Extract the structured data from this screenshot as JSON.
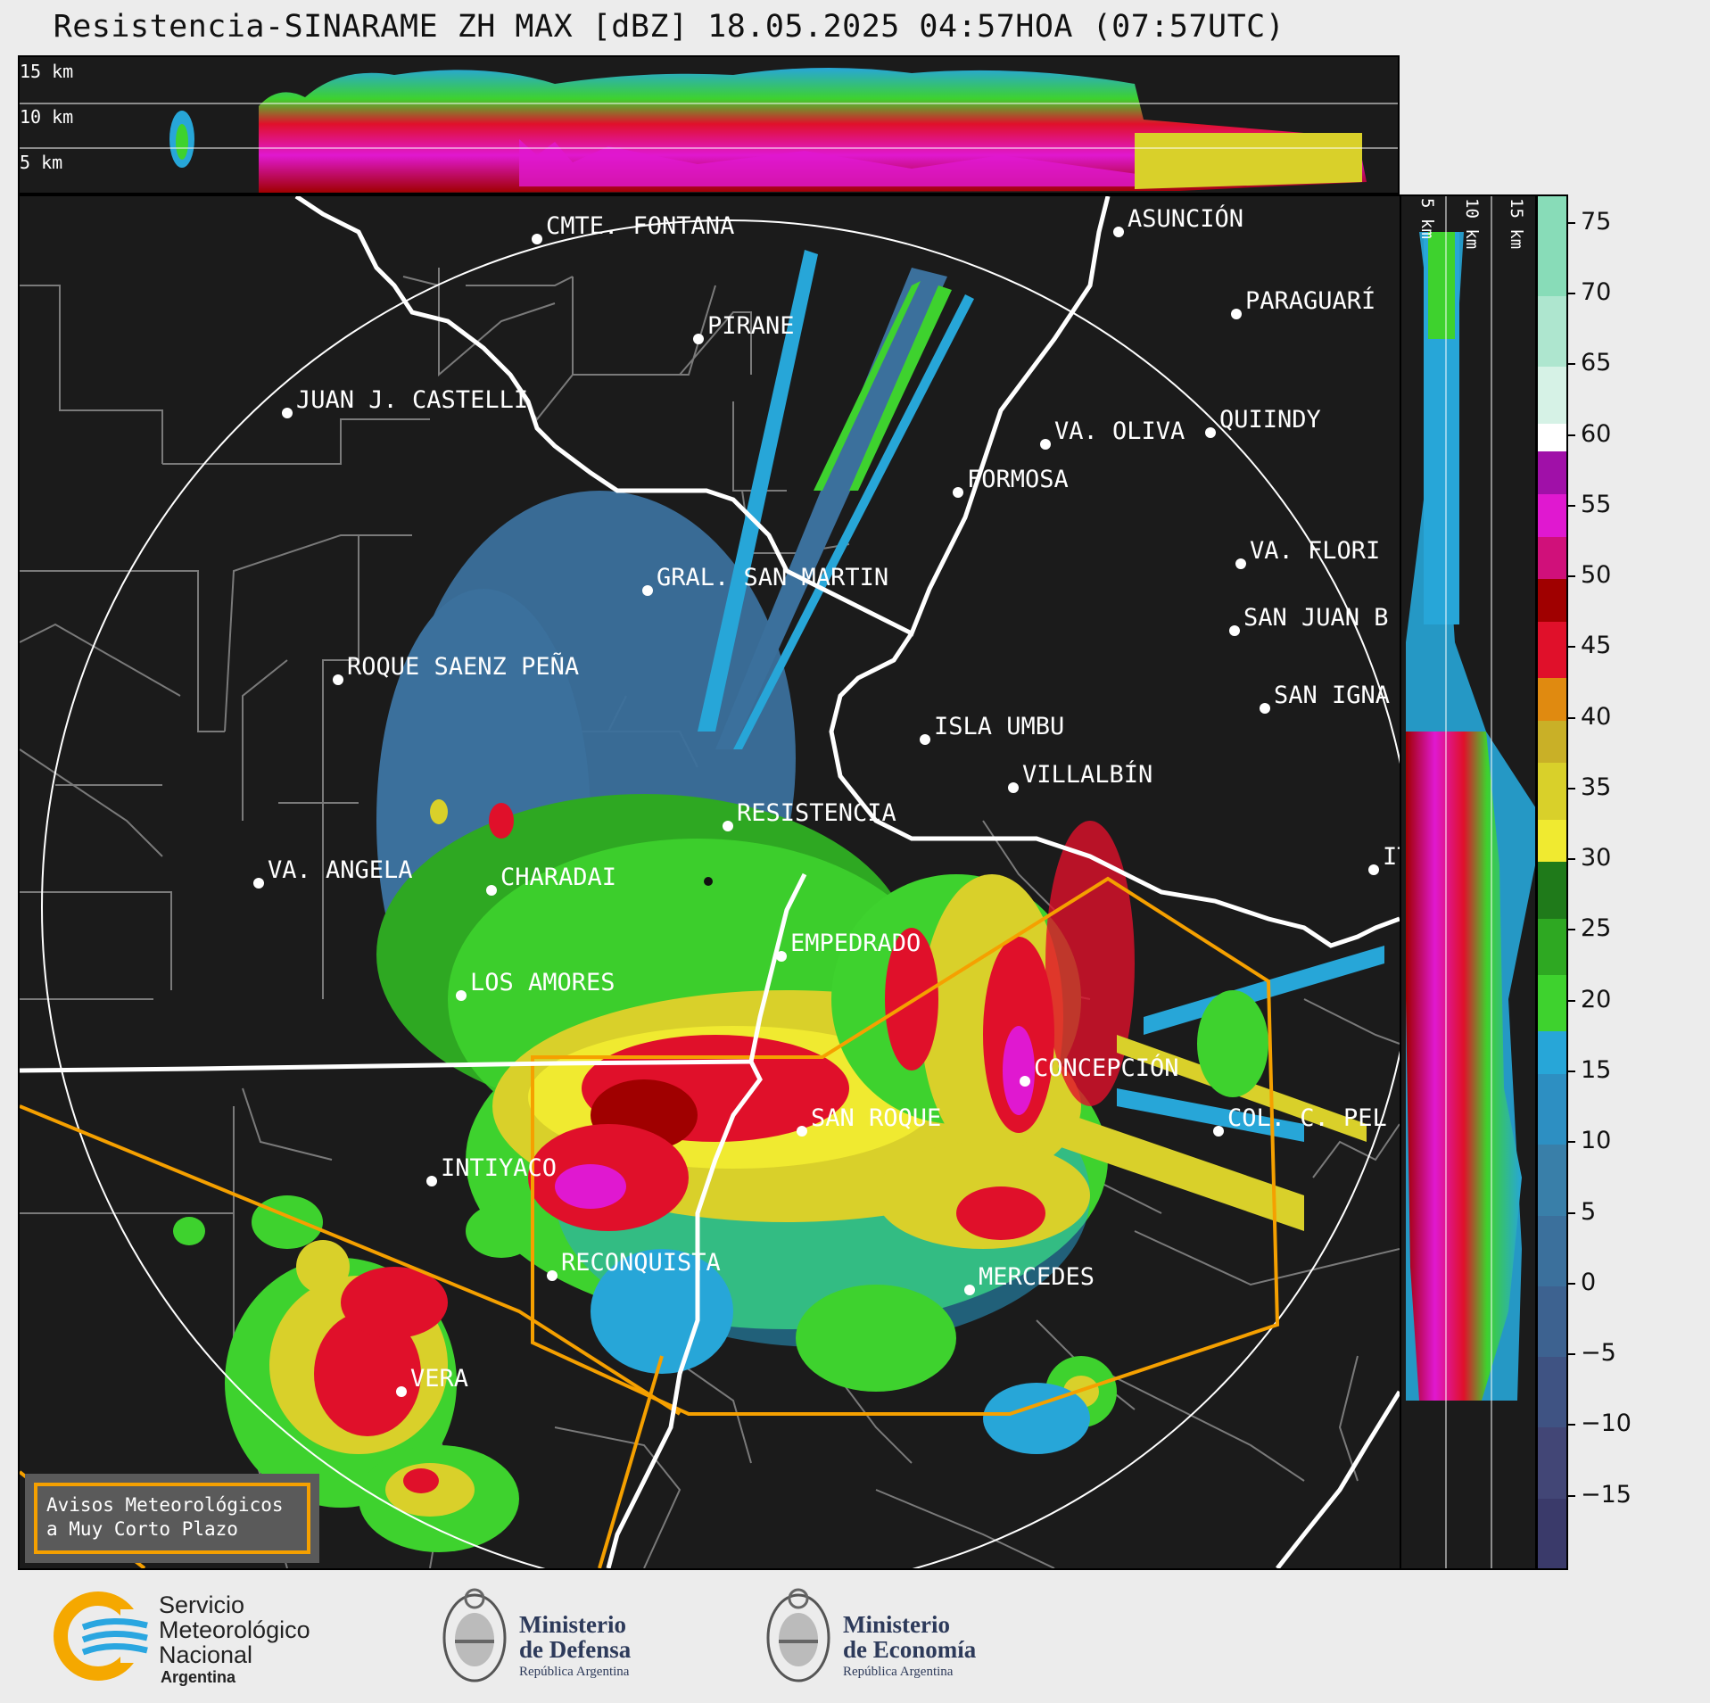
{
  "header": {
    "title": "Resistencia-SINARAME ZH MAX [dBZ] 18.05.2025 04:57HOA (07:57UTC)"
  },
  "top_profile": {
    "levels": [
      "15 km",
      "10 km",
      "5 km"
    ]
  },
  "side_profile": {
    "levels": [
      "5 km",
      "10 km",
      "15 km"
    ]
  },
  "map": {
    "cities": [
      {
        "name": "CMTE. FONTANA"
      },
      {
        "name": "ASUNCIÓN"
      },
      {
        "name": "PARAGUARÍ"
      },
      {
        "name": "PIRANE"
      },
      {
        "name": "JUAN J. CASTELLI"
      },
      {
        "name": "VA. OLIVA"
      },
      {
        "name": "QUIINDY"
      },
      {
        "name": "FORMOSA"
      },
      {
        "name": "VA. FLORI"
      },
      {
        "name": "GRAL. SAN MARTIN"
      },
      {
        "name": "SAN JUAN B"
      },
      {
        "name": "ROQUE SAENZ PEÑA"
      },
      {
        "name": "SAN IGNA"
      },
      {
        "name": "ISLA UMBU"
      },
      {
        "name": "VILLALBÍN"
      },
      {
        "name": "RESISTENCIA"
      },
      {
        "name": "VA. ANGELA"
      },
      {
        "name": "CHARADAI"
      },
      {
        "name": "IT"
      },
      {
        "name": "EMPEDRADO"
      },
      {
        "name": "LOS AMORES"
      },
      {
        "name": "CONCEPCIÓN"
      },
      {
        "name": "COL. C. PEL"
      },
      {
        "name": "SAN ROQUE"
      },
      {
        "name": "INTIYACO"
      },
      {
        "name": "RECONQUISTA"
      },
      {
        "name": "MERCEDES"
      },
      {
        "name": "VERA"
      }
    ]
  },
  "notice": {
    "line1": "Avisos Meteorológicos",
    "line2": "a Muy Corto Plazo"
  },
  "colorbar": {
    "unit": "dBZ",
    "min": -20,
    "max": 77,
    "ticks": [
      "75",
      "70",
      "65",
      "60",
      "55",
      "50",
      "45",
      "40",
      "35",
      "30",
      "25",
      "20",
      "15",
      "10",
      "5",
      "0",
      "−5",
      "−10",
      "−15"
    ],
    "tick_values": [
      75,
      70,
      65,
      60,
      55,
      50,
      45,
      40,
      35,
      30,
      25,
      20,
      15,
      10,
      5,
      0,
      -5,
      -10,
      -15
    ],
    "stops": [
      {
        "from": -20,
        "to": -15,
        "color": "#3a3a6a"
      },
      {
        "from": -15,
        "to": -10,
        "color": "#424676"
      },
      {
        "from": -10,
        "to": -5,
        "color": "#3f5383"
      },
      {
        "from": -5,
        "to": 0,
        "color": "#3d6290"
      },
      {
        "from": 0,
        "to": 5,
        "color": "#3b709c"
      },
      {
        "from": 5,
        "to": 10,
        "color": "#397fa9"
      },
      {
        "from": 10,
        "to": 15,
        "color": "#2d8fc2"
      },
      {
        "from": 15,
        "to": 18,
        "color": "#27a6d8"
      },
      {
        "from": 18,
        "to": 22,
        "color": "#3ed22e"
      },
      {
        "from": 22,
        "to": 26,
        "color": "#2ea822"
      },
      {
        "from": 26,
        "to": 30,
        "color": "#1f7a1a"
      },
      {
        "from": 30,
        "to": 33,
        "color": "#f0ea30"
      },
      {
        "from": 33,
        "to": 37,
        "color": "#d9d02a"
      },
      {
        "from": 37,
        "to": 40,
        "color": "#c9b027"
      },
      {
        "from": 40,
        "to": 43,
        "color": "#e08a10"
      },
      {
        "from": 43,
        "to": 47,
        "color": "#e0102a"
      },
      {
        "from": 47,
        "to": 50,
        "color": "#a00000"
      },
      {
        "from": 50,
        "to": 53,
        "color": "#d0107a"
      },
      {
        "from": 53,
        "to": 56,
        "color": "#e018d0"
      },
      {
        "from": 56,
        "to": 59,
        "color": "#a010a8"
      },
      {
        "from": 59,
        "to": 61,
        "color": "#ffffff"
      },
      {
        "from": 61,
        "to": 65,
        "color": "#d6f2e6"
      },
      {
        "from": 65,
        "to": 70,
        "color": "#aee6cf"
      },
      {
        "from": 70,
        "to": 77,
        "color": "#88dcb8"
      }
    ]
  },
  "footer": {
    "smn": {
      "l1": "Servicio",
      "l2": "Meteorológico",
      "l3": "Nacional",
      "l4": "Argentina"
    },
    "defensa": {
      "l1": "Ministerio",
      "l2": "de Defensa",
      "l3": "República Argentina"
    },
    "economia": {
      "l1": "Ministerio",
      "l2": "de Economía",
      "l3": "República Argentina"
    }
  }
}
